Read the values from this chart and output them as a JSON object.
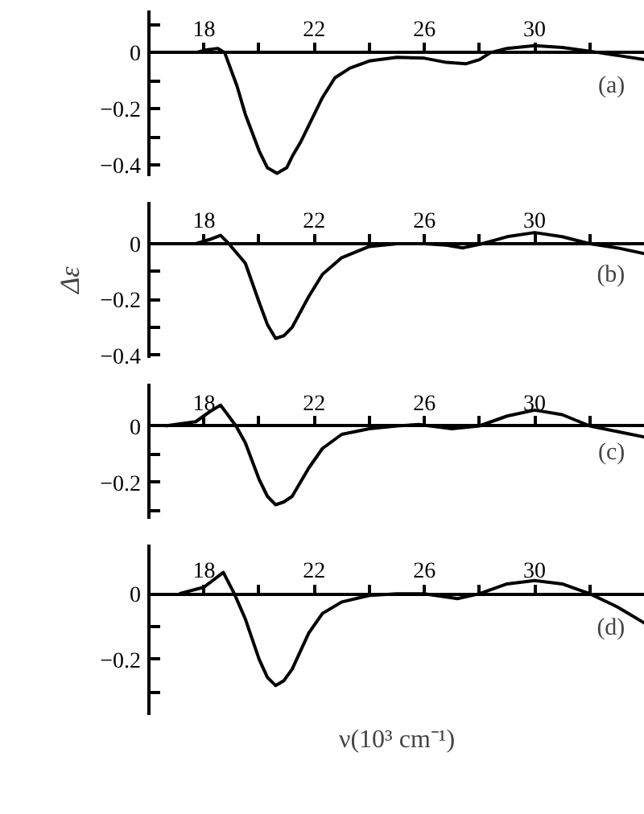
{
  "chart_data": [
    {
      "type": "line",
      "x": [
        17.7,
        18.1,
        18.5,
        18.75,
        19.2,
        19.5,
        20,
        20.3,
        20.65,
        21,
        21.2,
        21.5,
        21.8,
        22.3,
        22.75,
        23.3,
        24,
        25,
        26,
        26.8,
        27.5,
        28,
        28.4,
        29,
        30,
        31,
        32,
        33,
        34
      ],
      "series": [
        {
          "color": "#000000",
          "values": [
            0,
            0.01,
            0.015,
            0,
            -0.12,
            -0.22,
            -0.35,
            -0.41,
            -0.43,
            -0.41,
            -0.37,
            -0.32,
            -0.26,
            -0.16,
            -0.09,
            -0.055,
            -0.03,
            -0.017,
            -0.02,
            -0.035,
            -0.04,
            -0.025,
            0,
            0.015,
            0.025,
            0.018,
            0.005,
            -0.01,
            -0.025
          ]
        }
      ],
      "xlim": [
        16,
        34
      ],
      "ylim": [
        -0.44,
        0.15
      ],
      "xticks": [
        {
          "value": 18,
          "label": "18"
        },
        {
          "value": 20,
          "label": null
        },
        {
          "value": 22,
          "label": "22"
        },
        {
          "value": 24,
          "label": null
        },
        {
          "value": 26,
          "label": "26"
        },
        {
          "value": 28,
          "label": null
        },
        {
          "value": 30,
          "label": "30"
        },
        {
          "value": 32,
          "label": null
        }
      ],
      "yticks": [
        {
          "value": 0.1,
          "label": null
        },
        {
          "value": 0,
          "label": "0"
        },
        {
          "value": -0.1,
          "label": null
        },
        {
          "value": -0.2,
          "label": "−0.2"
        },
        {
          "value": -0.3,
          "label": null
        },
        {
          "value": -0.4,
          "label": "−0.4"
        }
      ],
      "annotations": [
        "(a)"
      ]
    },
    {
      "type": "line",
      "x": [
        17.7,
        18.2,
        18.6,
        18.9,
        19.5,
        20,
        20.3,
        20.6,
        20.9,
        21.2,
        21.8,
        22.3,
        23,
        24,
        25,
        26,
        26.8,
        27.4,
        28.1,
        29,
        30,
        31,
        32,
        33,
        34
      ],
      "series": [
        {
          "color": "#000000",
          "values": [
            0,
            0.015,
            0.03,
            0,
            -0.07,
            -0.21,
            -0.29,
            -0.34,
            -0.33,
            -0.3,
            -0.19,
            -0.11,
            -0.05,
            -0.01,
            0,
            0,
            -0.005,
            -0.015,
            0,
            0.025,
            0.04,
            0.025,
            0,
            -0.015,
            -0.036
          ]
        }
      ],
      "xlim": [
        16,
        34
      ],
      "ylim": [
        -0.41,
        0.15
      ],
      "ylabel": "Δε",
      "xticks": [
        {
          "value": 18,
          "label": "18"
        },
        {
          "value": 20,
          "label": null
        },
        {
          "value": 22,
          "label": "22"
        },
        {
          "value": 24,
          "label": null
        },
        {
          "value": 26,
          "label": "26"
        },
        {
          "value": 28,
          "label": null
        },
        {
          "value": 30,
          "label": "30"
        },
        {
          "value": 32,
          "label": null
        }
      ],
      "yticks": [
        {
          "value": 0,
          "label": "0"
        },
        {
          "value": -0.1,
          "label": null
        },
        {
          "value": -0.2,
          "label": "−0.2"
        },
        {
          "value": -0.3,
          "label": null
        },
        {
          "value": -0.4,
          "label": "−0.4"
        }
      ],
      "annotations": [
        "(b)"
      ]
    },
    {
      "type": "line",
      "x": [
        16.6,
        17.7,
        18.2,
        18.6,
        19.16,
        19.5,
        20,
        20.3,
        20.6,
        20.9,
        21.2,
        21.8,
        22.3,
        23,
        24,
        25,
        25.8,
        27,
        28,
        29,
        30,
        31,
        32,
        33,
        34
      ],
      "series": [
        {
          "color": "#000000",
          "values": [
            0,
            0.015,
            0.05,
            0.074,
            0,
            -0.06,
            -0.19,
            -0.25,
            -0.28,
            -0.27,
            -0.25,
            -0.15,
            -0.08,
            -0.03,
            -0.01,
            0,
            0.005,
            -0.01,
            0,
            0.035,
            0.056,
            0.04,
            0,
            -0.02,
            -0.04
          ]
        }
      ],
      "xlim": [
        16,
        34
      ],
      "ylim": [
        -0.33,
        0.15
      ],
      "xticks": [
        {
          "value": 18,
          "label": "18"
        },
        {
          "value": 20,
          "label": null
        },
        {
          "value": 22,
          "label": "22"
        },
        {
          "value": 24,
          "label": null
        },
        {
          "value": 26,
          "label": "26"
        },
        {
          "value": 28,
          "label": null
        },
        {
          "value": 30,
          "label": "30"
        },
        {
          "value": 32,
          "label": null
        }
      ],
      "yticks": [
        {
          "value": 0,
          "label": "0"
        },
        {
          "value": -0.1,
          "label": null
        },
        {
          "value": -0.2,
          "label": "−0.2"
        },
        {
          "value": -0.3,
          "label": null
        }
      ],
      "annotations": [
        "(c)"
      ]
    },
    {
      "type": "line",
      "x": [
        17.1,
        18,
        18.7,
        19.1,
        19.5,
        20,
        20.3,
        20.6,
        20.9,
        21.2,
        21.8,
        22.3,
        23,
        24,
        25,
        26,
        27.2,
        28,
        29,
        30,
        31,
        32,
        33,
        34
      ],
      "series": [
        {
          "color": "#000000",
          "values": [
            0,
            0.02,
            0.065,
            0,
            -0.077,
            -0.2,
            -0.255,
            -0.28,
            -0.265,
            -0.23,
            -0.12,
            -0.06,
            -0.025,
            -0.005,
            0,
            0,
            -0.015,
            0,
            0.03,
            0.04,
            0.03,
            0,
            -0.04,
            -0.09
          ]
        }
      ],
      "xlim": [
        16,
        34
      ],
      "ylim": [
        -0.37,
        0.15
      ],
      "xlabel": "ν(10³ cm⁻¹)",
      "xticks": [
        {
          "value": 18,
          "label": "18"
        },
        {
          "value": 20,
          "label": null
        },
        {
          "value": 22,
          "label": "22"
        },
        {
          "value": 24,
          "label": null
        },
        {
          "value": 26,
          "label": "26"
        },
        {
          "value": 28,
          "label": null
        },
        {
          "value": 30,
          "label": "30"
        },
        {
          "value": 32,
          "label": null
        }
      ],
      "yticks": [
        {
          "value": 0,
          "label": "0"
        },
        {
          "value": -0.1,
          "label": null
        },
        {
          "value": -0.2,
          "label": "−0.2"
        },
        {
          "value": -0.3,
          "label": null
        }
      ],
      "annotations": [
        "(d)"
      ]
    }
  ]
}
